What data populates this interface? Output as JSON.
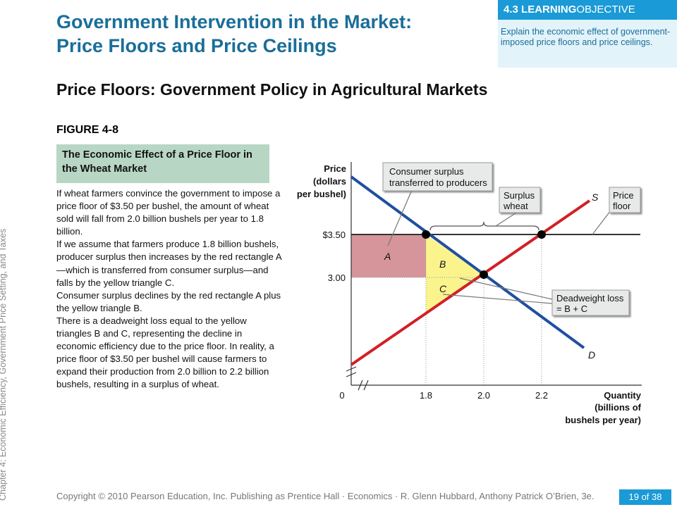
{
  "slide": {
    "title_line1": "Government Intervention in the Market:",
    "title_line2": "Price Floors and Price Ceilings",
    "objective_number": "4.3",
    "objective_label_bold": "LEARNING",
    "objective_label_rest": "OBJECTIVE",
    "objective_text": "Explain the economic effect of government-imposed price floors and price ceilings.",
    "subtitle": "Price Floors: Government Policy in Agricultural Markets",
    "figure_label": "FIGURE 4-8",
    "caption": "The Economic Effect of a Price Floor in the Wheat Market",
    "body": [
      "If wheat farmers convince the government to impose a price floor of $3.50 per bushel, the amount of wheat sold will fall from 2.0 billion bushels per year to 1.8 billion.",
      "If we assume that farmers produce 1.8 billion bushels, producer surplus then increases by the red rectangle A—which is transferred from consumer surplus—and falls by the yellow triangle C.",
      "Consumer surplus declines by the red rectangle A plus the yellow triangle B.",
      "There is a deadweight loss equal to the yellow triangles B and C, representing the decline in economic efficiency due to the price floor. In reality, a price floor of $3.50 per bushel will cause farmers to expand their production from 2.0 billion to 2.2 billion bushels, resulting in a surplus of wheat."
    ],
    "side_label": "Chapter 4: Economic Efficiency, Government Price Setting, and Taxes",
    "copyright": "Copyright © 2010 Pearson Education, Inc. Publishing as Prentice Hall · Economics · R. Glenn Hubbard, Anthony Patrick O’Brien, 3e.",
    "page": "19 of 38"
  },
  "diagram": {
    "y_title": [
      "Price",
      "(dollars",
      "per bushel)"
    ],
    "x_title": [
      "Quantity",
      "(billions of",
      "bushels per year)"
    ],
    "y_ticks": [
      "$3.50",
      "3.00"
    ],
    "x_ticks": [
      "0",
      "1.8",
      "2.0",
      "2.2"
    ],
    "curve_labels": {
      "supply": "S",
      "demand": "D"
    },
    "area_labels": {
      "a": "A",
      "b": "B",
      "c": "C"
    },
    "callouts": {
      "consumer_surplus": [
        "Consumer surplus",
        "transferred to producers"
      ],
      "surplus_wheat": [
        "Surplus",
        "wheat"
      ],
      "price_floor": [
        "Price",
        "floor"
      ],
      "deadweight": [
        "Deadweight loss",
        "= B + C"
      ]
    },
    "colors": {
      "supply": "#d21f26",
      "demand": "#1f4fa0",
      "area_a": "#d6959b",
      "area_bc": "#fbf48d",
      "callout_bg": "#e8e9e9"
    }
  }
}
